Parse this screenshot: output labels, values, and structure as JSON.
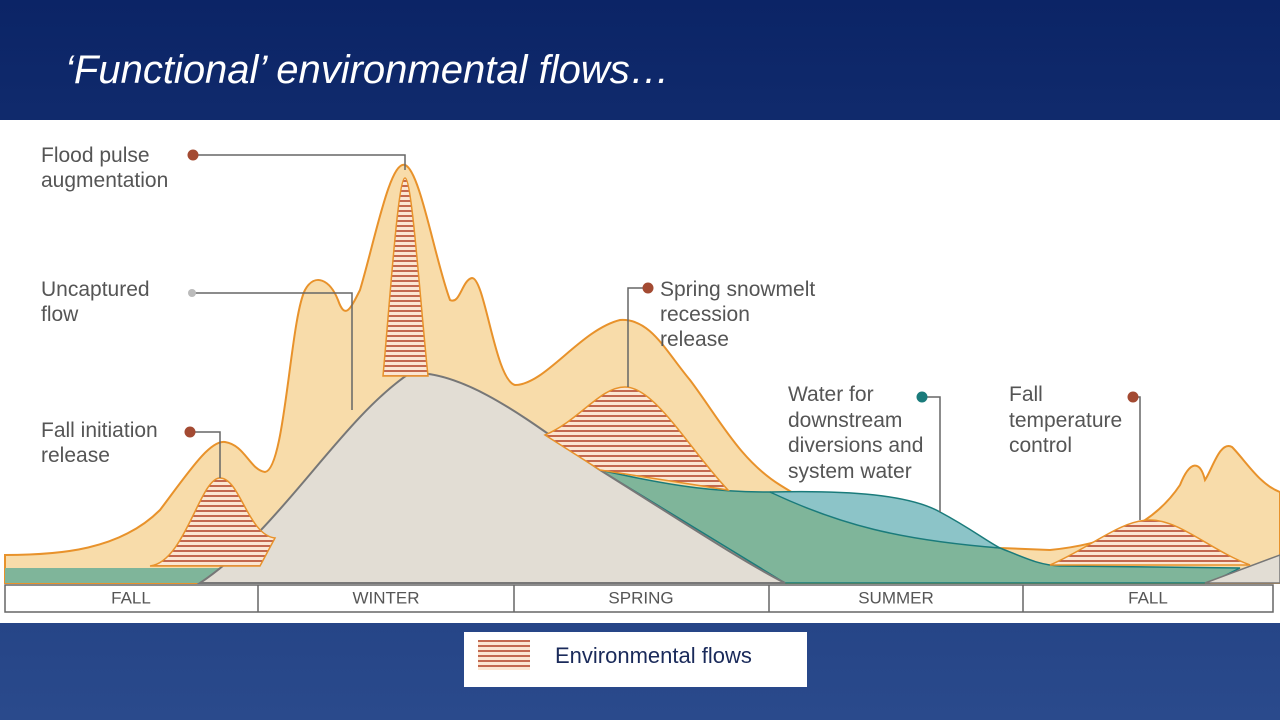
{
  "slide": {
    "title": "‘Functional’ environmental flows…"
  },
  "diagram": {
    "annotations": [
      {
        "lines": [
          "Flood pulse",
          "augmentation"
        ]
      },
      {
        "lines": [
          "Uncaptured",
          "flow"
        ]
      },
      {
        "lines": [
          "Fall initiation",
          "release"
        ]
      },
      {
        "lines": [
          "Spring snowmelt",
          "recession",
          "release"
        ]
      },
      {
        "lines": [
          "Water for",
          "downstream",
          "diversions and",
          "system water"
        ]
      },
      {
        "lines": [
          "Fall",
          "temperature",
          "control"
        ]
      }
    ],
    "seasons": [
      "FALL",
      "WINTER",
      "SPRING",
      "SUMMER",
      "FALL"
    ]
  },
  "legend": {
    "label": "Environmental flows"
  }
}
